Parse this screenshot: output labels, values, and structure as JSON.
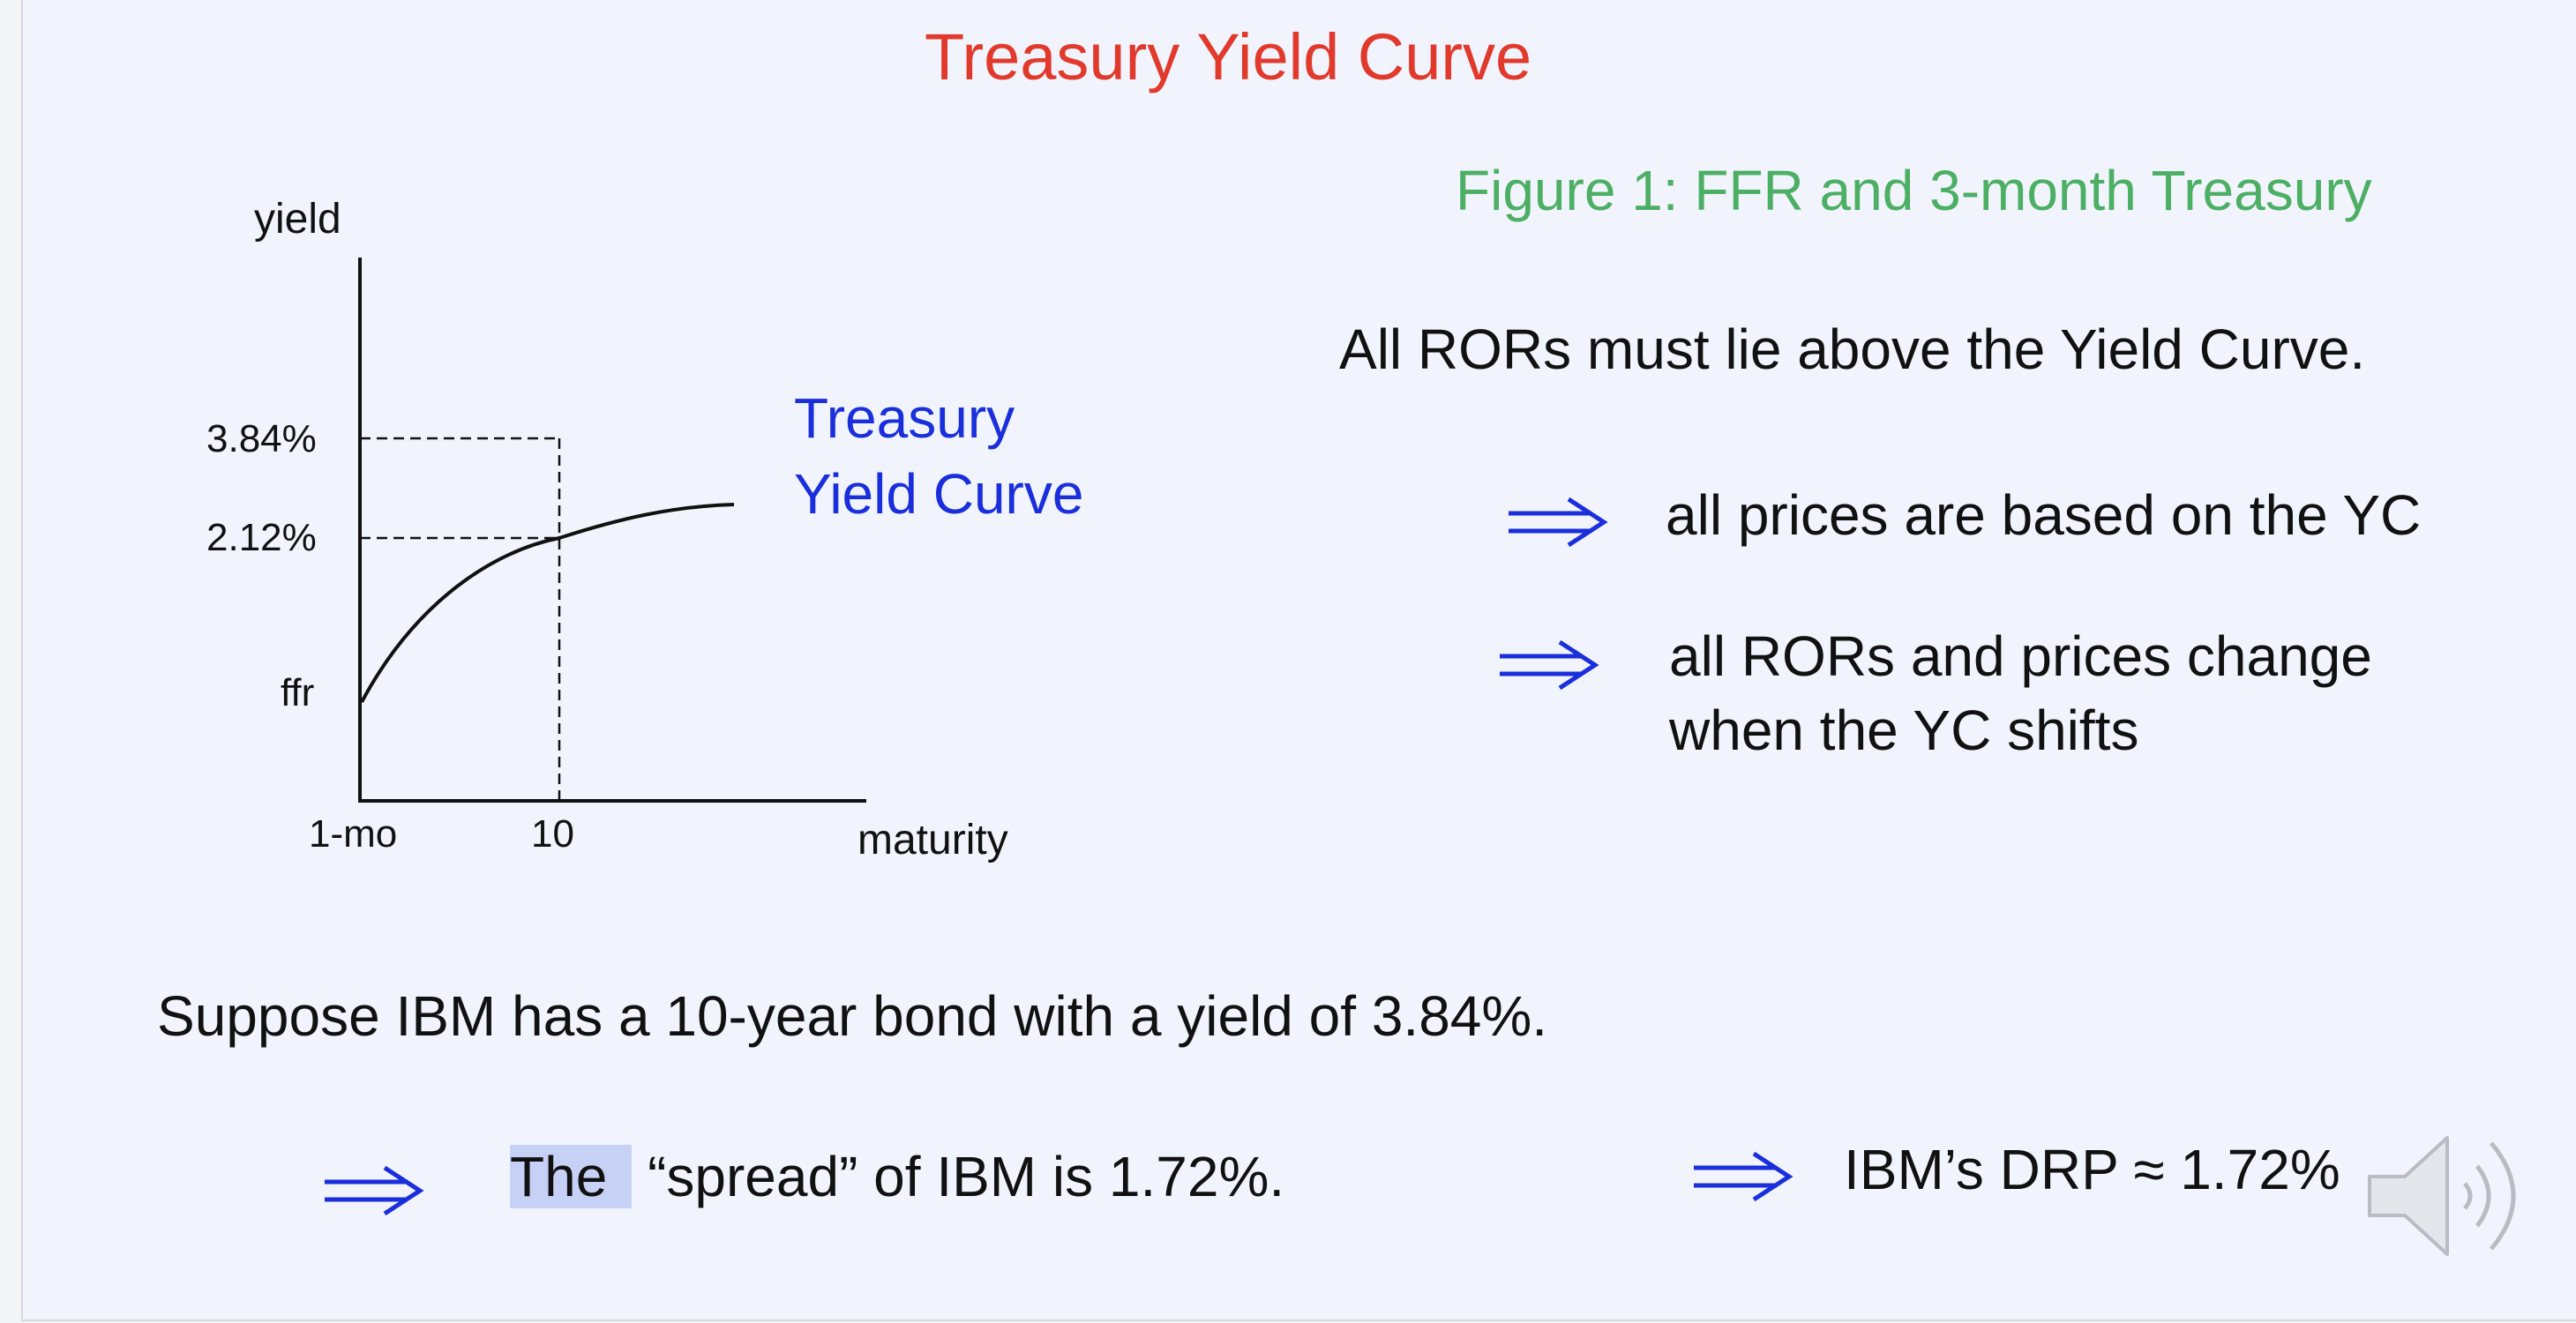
{
  "slide": {
    "title": "Treasury Yield Curve",
    "figure_caption": "Figure 1:  FFR and 3-month Treasury",
    "statement": "All RORs must lie above the Yield Curve.",
    "implication_1": "all prices are based on the YC",
    "implication_2_line1": "all RORs and prices change",
    "implication_2_line2": "when the YC shifts",
    "example": "Suppose IBM has a 10-year bond with a yield of 3.84%.",
    "spread_highlight": "The",
    "spread_rest": " “spread” of IBM is 1.72%.",
    "drp": "IBM’s DRP ≈  1.72%"
  },
  "icons": {
    "implies": "double-right-arrow",
    "audio": "speaker-icon"
  },
  "colors": {
    "title": "#e13a2c",
    "caption": "#4caf63",
    "curve_label": "#1a2fdb",
    "arrow": "#1a2fdb",
    "highlight": "#c7d1f5"
  },
  "chart_data": {
    "type": "line",
    "ylabel": "yield",
    "xlabel": "maturity",
    "x_ticks": [
      "1-mo",
      "10"
    ],
    "y_ticks": [
      "ffr",
      "2.12%",
      "3.84%"
    ],
    "series": [
      {
        "name": "Treasury Yield Curve",
        "shape": "concave increasing from ffr at 1-mo, passing 2.12% at 10"
      }
    ],
    "reference_lines": [
      {
        "label": "3.84%",
        "at_x": "10"
      },
      {
        "label": "2.12%",
        "at_x": "10"
      }
    ],
    "curve_label_line1": "Treasury",
    "curve_label_line2": "Yield Curve"
  }
}
